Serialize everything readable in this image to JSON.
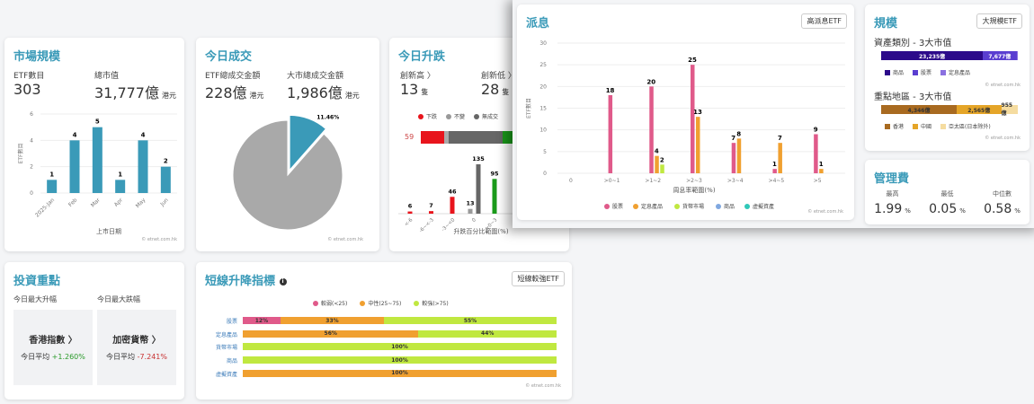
{
  "market_size": {
    "title": "市場規模",
    "etf_count_label": "ETF數目",
    "etf_count": "303",
    "total_cap_label": "總市值",
    "total_cap": "31,777億",
    "total_cap_unit": "港元",
    "copyright": "© etnet.com.hk",
    "chart_data": {
      "type": "bar",
      "categories": [
        "2025-Jan",
        "Feb",
        "Mar",
        "Apr",
        "May",
        "Jun"
      ],
      "values": [
        1,
        4,
        5,
        1,
        4,
        2
      ],
      "ylabel": "ETF數目",
      "xlabel": "上市日期",
      "ylim": [
        0,
        6
      ],
      "yticks": [
        0,
        2,
        4,
        6
      ],
      "color": "#3a9ab8"
    }
  },
  "turnover": {
    "title": "今日成交",
    "etf_label": "ETF總成交金額",
    "etf_value": "228億",
    "etf_unit": "港元",
    "market_label": "大市總成交金額",
    "market_value": "1,986億",
    "market_unit": "港元",
    "copyright": "© etnet.com.hk",
    "chart_data": {
      "type": "pie",
      "slices": [
        {
          "value": 11.46,
          "label": "11.46%",
          "color": "#3a9ab8"
        },
        {
          "value": 88.54,
          "color": "#a9a9a9"
        }
      ]
    }
  },
  "updown": {
    "title": "今日升跌",
    "new_high_label": "創新高 〉",
    "new_high": "13",
    "new_low_label": "創新低 〉",
    "new_low": "28",
    "unit": "隻",
    "bar_count": "59",
    "legend": [
      {
        "label": "下跌",
        "color": "#e8141c"
      },
      {
        "label": "不變",
        "color": "#999999"
      },
      {
        "label": "無成交",
        "color": "#666666"
      }
    ],
    "chart_data": {
      "type": "bar",
      "categories": [
        "<-6",
        "-6~<-3",
        "-3~<0",
        "0",
        ">0~3"
      ],
      "series": [
        {
          "values": [
            6,
            7,
            46,
            13,
            95
          ],
          "colors": [
            "#e8141c",
            "#e8141c",
            "#e8141c",
            "#999999",
            "#1a9a1a"
          ]
        },
        {
          "values": [
            null,
            null,
            null,
            135,
            null
          ],
          "colors": [
            "#666666"
          ]
        }
      ],
      "xlabel": "升跌百分比範圍(%)"
    },
    "copyright": "© etnet.com.hk"
  },
  "dividend": {
    "title": "派息",
    "button": "高派息ETF",
    "copyright": "© etnet.com.hk",
    "chart_data": {
      "type": "bar",
      "categories": [
        "0",
        ">0~1",
        ">1~2",
        ">2~3",
        ">3~4",
        ">4~5",
        ">5"
      ],
      "ylabel": "ETF數目",
      "xlabel": "周息率範圍(%)",
      "ylim": [
        0,
        30
      ],
      "yticks": [
        0,
        5,
        10,
        15,
        20,
        25,
        30
      ],
      "series": [
        {
          "name": "股票",
          "color": "#e05a8a",
          "values": [
            0,
            18,
            20,
            25,
            7,
            1,
            9
          ]
        },
        {
          "name": "定息產品",
          "color": "#f0a030",
          "values": [
            0,
            0,
            4,
            13,
            8,
            7,
            1
          ]
        },
        {
          "name": "貨幣市場",
          "color": "#c0e840",
          "values": [
            0,
            0,
            2,
            0,
            0,
            0,
            0
          ]
        },
        {
          "name": "商品",
          "color": "#80a8e0",
          "values": [
            0,
            0,
            0,
            0,
            0,
            0,
            0
          ]
        },
        {
          "name": "虛擬資產",
          "color": "#30c8b8",
          "values": [
            0,
            0,
            0,
            0,
            0,
            0,
            0
          ]
        }
      ]
    }
  },
  "scale": {
    "title": "規模",
    "button": "大規模ETF",
    "asset_title": "資產類別 - 3大市值",
    "region_title": "重點地區 - 3大市值",
    "copyright": "© etnet.com.hk",
    "asset_bar": [
      {
        "label": "23,235億",
        "value": 23235,
        "color": "#2c0a8a"
      },
      {
        "label": "7,677億",
        "value": 7677,
        "color": "#5a3ed0"
      },
      {
        "label": "",
        "value": 300,
        "color": "#8a70e0"
      }
    ],
    "asset_legend": [
      {
        "label": "商品",
        "color": "#2c0a8a"
      },
      {
        "label": "股票",
        "color": "#5a3ed0"
      },
      {
        "label": "定息產品",
        "color": "#8a70e0"
      }
    ],
    "region_bar": [
      {
        "label": "4,346億",
        "value": 4346,
        "color": "#a86a20"
      },
      {
        "label": "2,565億",
        "value": 2565,
        "color": "#e5a528"
      },
      {
        "label": "955億",
        "value": 955,
        "color": "#f5dca0"
      }
    ],
    "region_legend": [
      {
        "label": "香港",
        "color": "#a86a20"
      },
      {
        "label": "中國",
        "color": "#e5a528"
      },
      {
        "label": "亞太區(日本除外)",
        "color": "#f5dca0"
      }
    ]
  },
  "fees": {
    "title": "管理費",
    "items": [
      {
        "label": "最高",
        "value": "1.99",
        "unit": "%"
      },
      {
        "label": "最低",
        "value": "0.05",
        "unit": "%"
      },
      {
        "label": "中位數",
        "value": "0.58",
        "unit": "%"
      }
    ]
  },
  "focus": {
    "title": "投資重點",
    "gain_label": "今日最大升幅",
    "loss_label": "今日最大跌幅",
    "gain_name": "香港指數 〉",
    "gain_avg_label": "今日平均",
    "gain_avg": "+1.260%",
    "loss_name": "加密貨幣 〉",
    "loss_avg_label": "今日平均",
    "loss_avg": "-7.241%"
  },
  "shortterm": {
    "title": "短線升降指標",
    "button": "短線較強ETF",
    "copyright": "© etnet.com.hk",
    "legend": [
      {
        "label": "較弱(<25)",
        "color": "#e05a8a"
      },
      {
        "label": "中性(25~75)",
        "color": "#f0a030"
      },
      {
        "label": "較強(>75)",
        "color": "#c0e840"
      }
    ],
    "chart_data": {
      "type": "bar",
      "stacked": true,
      "categories": [
        "股票",
        "定息產品",
        "貨幣市場",
        "商品",
        "虛擬資產"
      ],
      "series": [
        {
          "name": "較弱(<25)",
          "values": [
            12,
            0,
            0,
            0,
            0
          ]
        },
        {
          "name": "中性(25~75)",
          "values": [
            33,
            56,
            0,
            0,
            100
          ]
        },
        {
          "name": "較強(>75)",
          "values": [
            55,
            44,
            100,
            100,
            0
          ]
        }
      ]
    }
  }
}
